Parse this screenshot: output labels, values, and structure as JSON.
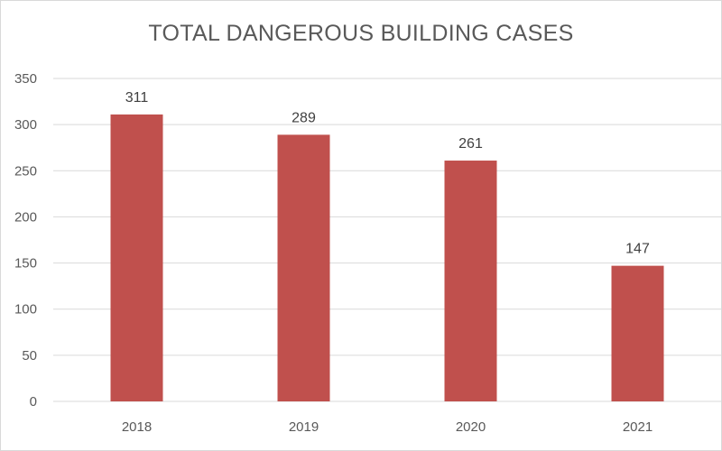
{
  "chart_data": {
    "type": "bar",
    "title": "TOTAL DANGEROUS BUILDING CASES",
    "xlabel": "",
    "ylabel": "",
    "categories": [
      "2018",
      "2019",
      "2020",
      "2021"
    ],
    "values": [
      311,
      289,
      261,
      147
    ],
    "ylim": [
      0,
      350
    ],
    "yticks": [
      0,
      50,
      100,
      150,
      200,
      250,
      300,
      350
    ],
    "grid": true,
    "legend": "none",
    "bar_color": "#c0504d",
    "grid_color": "#d9d9d9"
  }
}
